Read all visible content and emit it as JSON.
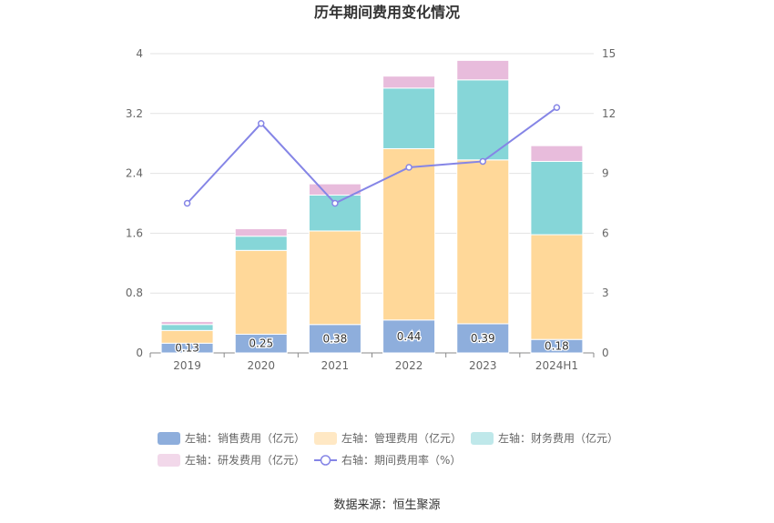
{
  "chart_data": {
    "type": "bar",
    "title": "历年期间费用变化情况",
    "categories": [
      "2019",
      "2020",
      "2021",
      "2022",
      "2023",
      "2024H1"
    ],
    "left_axis": {
      "ylim": [
        0,
        4
      ],
      "ticks": [
        "0",
        "0.8",
        "1.6",
        "2.4",
        "3.2",
        "4"
      ]
    },
    "right_axis": {
      "ylim": [
        0,
        15
      ],
      "ticks": [
        "0",
        "3",
        "6",
        "9",
        "12",
        "15"
      ]
    },
    "series": [
      {
        "name": "左轴：销售费用（亿元）",
        "axis": "left",
        "type": "bar",
        "color": "#8eaedc",
        "values": [
          0.13,
          0.25,
          0.38,
          0.44,
          0.39,
          0.18
        ],
        "labels": [
          "0.13",
          "0.25",
          "0.38",
          "0.44",
          "0.39",
          "0.18"
        ]
      },
      {
        "name": "左轴：管理费用（亿元）",
        "axis": "left",
        "type": "bar",
        "color": "#ffd899",
        "legend_color": "#ffe8c4",
        "values": [
          0.17,
          1.12,
          1.25,
          2.29,
          2.19,
          1.4
        ]
      },
      {
        "name": "左轴：财务费用（亿元）",
        "axis": "left",
        "type": "bar",
        "color": "#86d6d8",
        "legend_color": "#bfe8ea",
        "values": [
          0.08,
          0.19,
          0.48,
          0.81,
          1.07,
          0.98
        ]
      },
      {
        "name": "左轴：研发费用（亿元）",
        "axis": "left",
        "type": "bar",
        "color": "#e8bcdc",
        "legend_color": "#f2d8ea",
        "values": [
          0.04,
          0.1,
          0.15,
          0.16,
          0.26,
          0.21
        ]
      },
      {
        "name": "右轴：期间费用率（%）",
        "axis": "right",
        "type": "line",
        "color": "#8585e6",
        "values": [
          7.5,
          11.5,
          7.5,
          9.3,
          9.6,
          12.3
        ]
      }
    ],
    "source": "数据来源：恒生聚源"
  }
}
